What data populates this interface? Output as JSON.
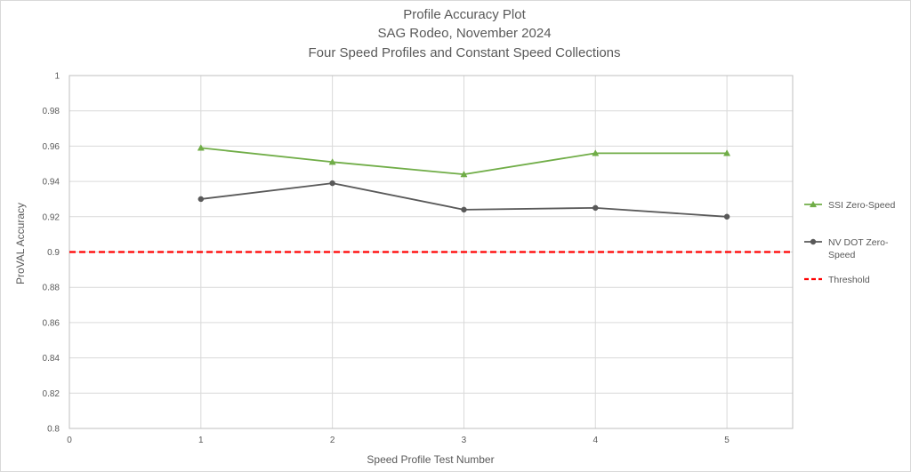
{
  "chart_data": {
    "type": "line",
    "title": "Profile Accuracy Plot",
    "title_lines": [
      "Profile Accuracy Plot",
      "SAG Rodeo, November 2024",
      "Four Speed Profiles and Constant Speed Collections"
    ],
    "xlabel": "Speed Profile Test Number",
    "ylabel": "ProVAL Accuracy",
    "xlim": [
      0,
      5.5
    ],
    "ylim": [
      0.8,
      1
    ],
    "x_ticks": [
      "0",
      "1",
      "2",
      "3",
      "4",
      "5"
    ],
    "x_tick_values": [
      0,
      1,
      2,
      3,
      4,
      5
    ],
    "y_ticks": [
      "0.8",
      "0.82",
      "0.84",
      "0.86",
      "0.88",
      "0.9",
      "0.92",
      "0.94",
      "0.96",
      "0.98",
      "1"
    ],
    "y_tick_values": [
      0.8,
      0.82,
      0.84,
      0.86,
      0.88,
      0.9,
      0.92,
      0.94,
      0.96,
      0.98,
      1.0
    ],
    "grid": true,
    "legend_position": "right",
    "series": [
      {
        "name": "SSI Zero-Speed",
        "legend_lines": [
          "SSI Zero-Speed"
        ],
        "color": "#70ad47",
        "marker": "triangle",
        "x": [
          1,
          2,
          3,
          4,
          5
        ],
        "y": [
          0.959,
          0.951,
          0.944,
          0.956,
          0.956
        ]
      },
      {
        "name": "NV DOT Zero-Speed",
        "legend_lines": [
          "NV DOT Zero-",
          "Speed"
        ],
        "color": "#595959",
        "marker": "circle",
        "x": [
          1,
          2,
          3,
          4,
          5
        ],
        "y": [
          0.93,
          0.939,
          0.924,
          0.925,
          0.92
        ]
      }
    ],
    "threshold": {
      "name": "Threshold",
      "value": 0.9,
      "color": "#ff0000",
      "style": "dashed"
    }
  }
}
